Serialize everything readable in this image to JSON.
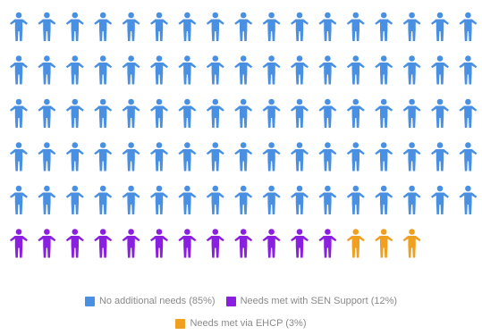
{
  "chart_data": {
    "type": "pictogram",
    "icon": "person-icon",
    "units_total": 100,
    "series": [
      {
        "name": "No additional needs (85%)",
        "value": 85,
        "color": "#4a90e2"
      },
      {
        "name": "Needs met with SEN Support (12%)",
        "value": 12,
        "color": "#8b1fe0"
      },
      {
        "name": "Needs met via EHCP (3%)",
        "value": 3,
        "color": "#f0a020"
      }
    ],
    "legend_position": "bottom"
  }
}
